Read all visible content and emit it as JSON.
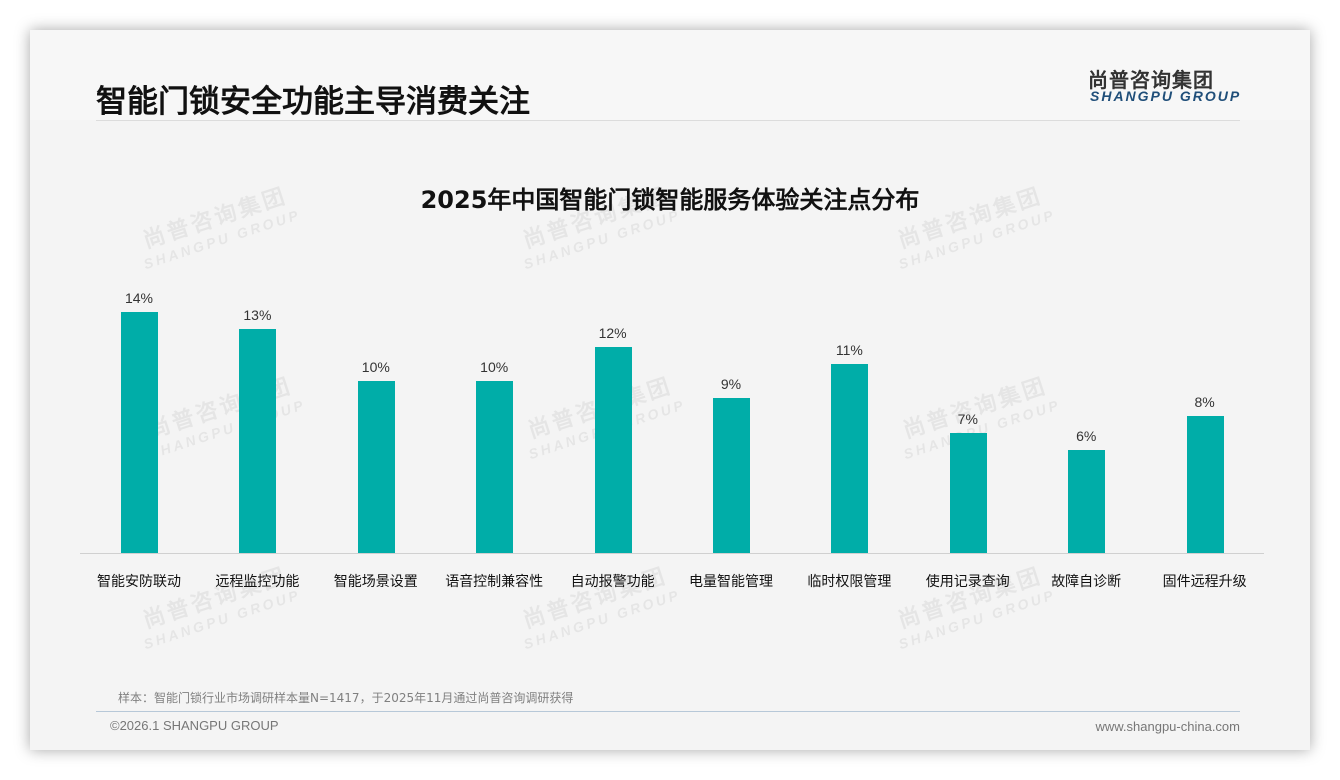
{
  "header": {
    "title": "智能门锁安全功能主导消费关注",
    "logo_cn": "尚普咨询集团",
    "logo_en": "SHANGPU GROUP"
  },
  "watermark": {
    "cn": "尚普咨询集团",
    "en": "SHANGPU GROUP"
  },
  "colors": {
    "bar": "#00ada8",
    "logo_en": "#1f4e79",
    "background": "#f4f4f4"
  },
  "chart_data": {
    "type": "bar",
    "title": "2025年中国智能门锁智能服务体验关注点分布",
    "xlabel": "",
    "ylabel": "",
    "ylim": [
      0,
      16
    ],
    "grid": false,
    "legend": null,
    "categories": [
      "智能安防联动",
      "远程监控功能",
      "智能场景设置",
      "语音控制兼容性",
      "自动报警功能",
      "电量智能管理",
      "临时权限管理",
      "使用记录查询",
      "故障自诊断",
      "固件远程升级"
    ],
    "values": [
      14,
      13,
      10,
      10,
      12,
      9,
      11,
      7,
      6,
      8
    ],
    "value_labels": [
      "14%",
      "13%",
      "10%",
      "10%",
      "12%",
      "9%",
      "11%",
      "7%",
      "6%",
      "8%"
    ],
    "unit": "%"
  },
  "footer": {
    "note": "样本：智能门锁行业市场调研样本量N=1417，于2025年11月通过尚普咨询调研获得",
    "copyright": "©2026.1 SHANGPU GROUP",
    "website": "www.shangpu-china.com"
  }
}
